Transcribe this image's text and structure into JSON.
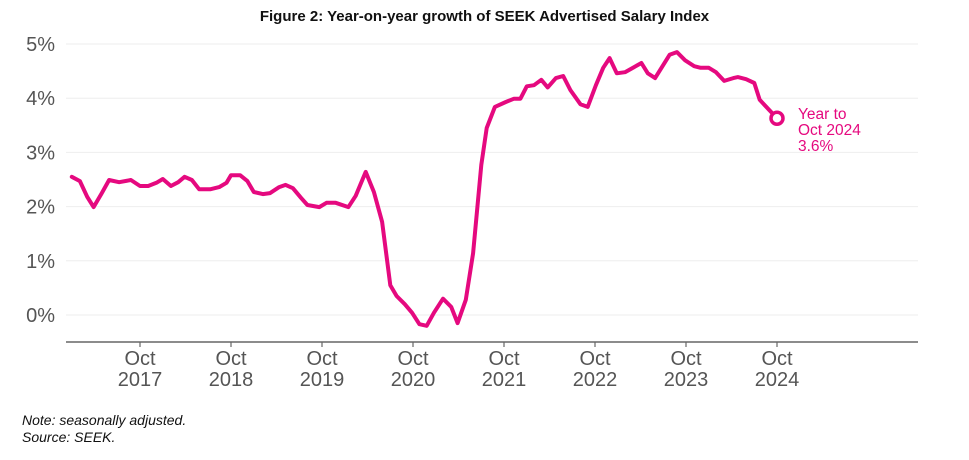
{
  "chart_data": {
    "type": "line",
    "title": "Figure 2: Year-on-year growth of SEEK Advertised Salary Index",
    "xlabel": "",
    "ylabel": "",
    "ylim": [
      -0.5,
      5
    ],
    "xlim": [
      2016.92,
      2026.25
    ],
    "grid": true,
    "y_ticks": [
      {
        "value": 0,
        "label": "0%"
      },
      {
        "value": 1,
        "label": "1%"
      },
      {
        "value": 2,
        "label": "2%"
      },
      {
        "value": 3,
        "label": "3%"
      },
      {
        "value": 4,
        "label": "4%"
      },
      {
        "value": 5,
        "label": "5%"
      }
    ],
    "x_ticks": [
      {
        "value": 2017.75,
        "month": "Oct",
        "year": "2017"
      },
      {
        "value": 2018.75,
        "month": "Oct",
        "year": "2018"
      },
      {
        "value": 2019.75,
        "month": "Oct",
        "year": "2019"
      },
      {
        "value": 2020.75,
        "month": "Oct",
        "year": "2020"
      },
      {
        "value": 2021.75,
        "month": "Oct",
        "year": "2021"
      },
      {
        "value": 2022.75,
        "month": "Oct",
        "year": "2022"
      },
      {
        "value": 2023.75,
        "month": "Oct",
        "year": "2023"
      },
      {
        "value": 2024.75,
        "month": "Oct",
        "year": "2024"
      }
    ],
    "series": [
      {
        "name": "Year-on-year growth of SEEK Advertised Salary Index (%)",
        "color": "#e5097f",
        "x": [
          2017.0,
          2017.09,
          2017.17,
          2017.24,
          2017.33,
          2017.41,
          2017.52,
          2017.65,
          2017.75,
          2017.84,
          2017.93,
          2018.0,
          2018.09,
          2018.17,
          2018.24,
          2018.32,
          2018.4,
          2018.52,
          2018.62,
          2018.7,
          2018.75,
          2018.85,
          2018.93,
          2019.0,
          2019.1,
          2019.18,
          2019.28,
          2019.35,
          2019.43,
          2019.52,
          2019.59,
          2019.72,
          2019.8,
          2019.9,
          2020.04,
          2020.12,
          2020.23,
          2020.32,
          2020.41,
          2020.5,
          2020.57,
          2020.66,
          2020.74,
          2020.82,
          2020.9,
          2020.98,
          2021.08,
          2021.17,
          2021.24,
          2021.33,
          2021.41,
          2021.5,
          2021.56,
          2021.65,
          2021.77,
          2021.86,
          2021.93,
          2022.0,
          2022.08,
          2022.16,
          2022.23,
          2022.32,
          2022.4,
          2022.48,
          2022.59,
          2022.67,
          2022.76,
          2022.84,
          2022.91,
          2022.99,
          2023.08,
          2023.26,
          2023.33,
          2023.41,
          2023.57,
          2023.65,
          2023.74,
          2023.84,
          2023.91,
          2024.0,
          2024.08,
          2024.17,
          2024.27,
          2024.32,
          2024.41,
          2024.5,
          2024.56,
          2024.75
        ],
        "y": [
          2.55,
          2.47,
          2.18,
          1.99,
          2.25,
          2.49,
          2.45,
          2.49,
          2.38,
          2.38,
          2.44,
          2.51,
          2.38,
          2.45,
          2.55,
          2.49,
          2.32,
          2.32,
          2.36,
          2.44,
          2.58,
          2.58,
          2.47,
          2.27,
          2.23,
          2.25,
          2.36,
          2.4,
          2.34,
          2.16,
          2.03,
          1.99,
          2.07,
          2.07,
          1.99,
          2.2,
          2.64,
          2.27,
          1.72,
          0.55,
          0.35,
          0.2,
          0.04,
          -0.17,
          -0.2,
          0.04,
          0.3,
          0.15,
          -0.15,
          0.28,
          1.14,
          2.77,
          3.45,
          3.84,
          3.93,
          3.99,
          3.99,
          4.22,
          4.24,
          4.34,
          4.2,
          4.37,
          4.41,
          4.15,
          3.89,
          3.84,
          4.24,
          4.56,
          4.74,
          4.46,
          4.48,
          4.65,
          4.46,
          4.37,
          4.8,
          4.85,
          4.7,
          4.59,
          4.56,
          4.56,
          4.48,
          4.32,
          4.37,
          4.39,
          4.35,
          4.28,
          3.97,
          3.63
        ]
      }
    ],
    "annotation": {
      "x": 2024.75,
      "y": 3.63,
      "lines": [
        "Year to",
        "Oct 2024",
        "3.6%"
      ]
    },
    "legend": "none"
  },
  "notes": {
    "note": "Note: seasonally adjusted.",
    "source": "Source: SEEK."
  }
}
